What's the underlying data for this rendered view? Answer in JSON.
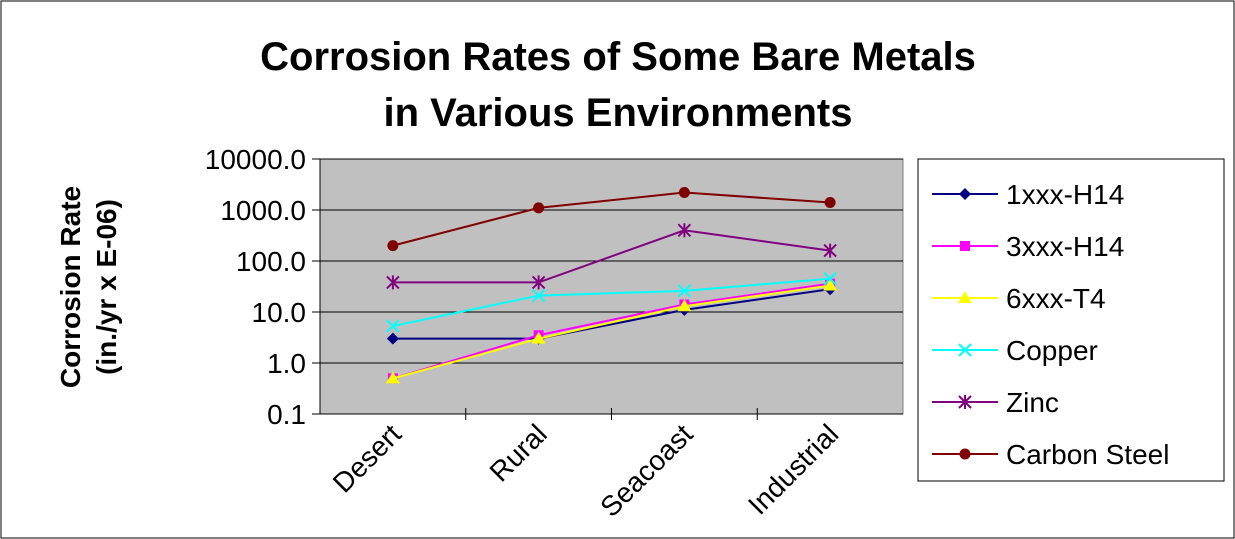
{
  "chart_data": {
    "type": "line",
    "title_line1": "Corrosion Rates of Some Bare Metals",
    "title_line2": "in Various Environments",
    "ylabel_line1": "Corrosion Rate",
    "ylabel_line2": "(in./yr x E-06)",
    "xlabel": "",
    "yscale": "log",
    "ylim": [
      0.1,
      10000
    ],
    "yticks": [
      "0.1",
      "1.0",
      "10.0",
      "100.0",
      "1000.0",
      "10000.0"
    ],
    "ytick_values": [
      0.1,
      1,
      10,
      100,
      1000,
      10000
    ],
    "categories": [
      "Desert",
      "Rural",
      "Seacoast",
      "Industrial"
    ],
    "grid": "horizontal",
    "plot_background": "#c0c0c0",
    "legend_position": "right",
    "series": [
      {
        "name": "1xxx-H14",
        "values": [
          3,
          3,
          11,
          28
        ],
        "color": "#000080",
        "marker": "diamond"
      },
      {
        "name": "3xxx-H14",
        "values": [
          0.5,
          3.5,
          14,
          36
        ],
        "color": "#ff00ff",
        "marker": "square"
      },
      {
        "name": "6xxx-T4",
        "values": [
          0.5,
          3,
          13,
          33
        ],
        "color": "#ffff00",
        "marker": "triangle"
      },
      {
        "name": "Copper",
        "values": [
          5.3,
          21,
          26,
          45
        ],
        "color": "#00ffff",
        "marker": "x"
      },
      {
        "name": "Zinc",
        "values": [
          38,
          38,
          400,
          160
        ],
        "color": "#800080",
        "marker": "asterisk"
      },
      {
        "name": "Carbon Steel",
        "values": [
          200,
          1100,
          2200,
          1400
        ],
        "color": "#800000",
        "marker": "circle"
      }
    ]
  }
}
